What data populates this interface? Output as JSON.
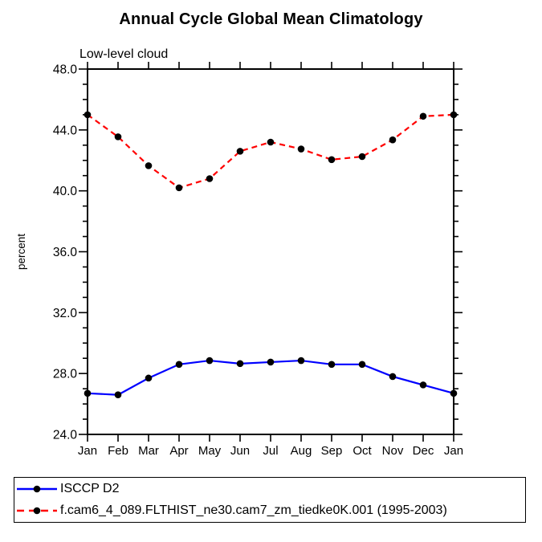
{
  "chart_data": {
    "type": "line",
    "title": "Annual Cycle Global Mean Climatology",
    "subtitle": "Low-level cloud",
    "xlabel": "",
    "ylabel": "percent",
    "ylim": [
      24.0,
      48.0
    ],
    "ytick_step": 4.0,
    "ytick_minor_step": 1.0,
    "ytick_labels": [
      "24.0",
      "28.0",
      "32.0",
      "36.0",
      "40.0",
      "44.0",
      "48.0"
    ],
    "grid": "off",
    "legend_position": "bottom",
    "categories": [
      "Jan",
      "Feb",
      "Mar",
      "Apr",
      "May",
      "Jun",
      "Jul",
      "Aug",
      "Sep",
      "Oct",
      "Nov",
      "Dec",
      "Jan"
    ],
    "series": [
      {
        "name": "ISCCP D2",
        "color": "#0000ff",
        "line_style": "solid",
        "marker": "filled-circle",
        "marker_color": "#000000",
        "values": [
          26.7,
          26.6,
          27.7,
          28.6,
          28.85,
          28.65,
          28.75,
          28.85,
          28.6,
          28.6,
          27.8,
          27.25,
          26.7
        ]
      },
      {
        "name": "f.cam6_4_089.FLTHIST_ne30.cam7_zm_tiedke0K.001 (1995-2003)",
        "color": "#ff0000",
        "line_style": "dashed",
        "marker": "filled-circle",
        "marker_color": "#000000",
        "values": [
          45.0,
          43.55,
          41.65,
          40.2,
          40.8,
          42.6,
          43.2,
          42.75,
          42.05,
          42.25,
          43.35,
          44.9,
          45.0
        ]
      }
    ]
  }
}
